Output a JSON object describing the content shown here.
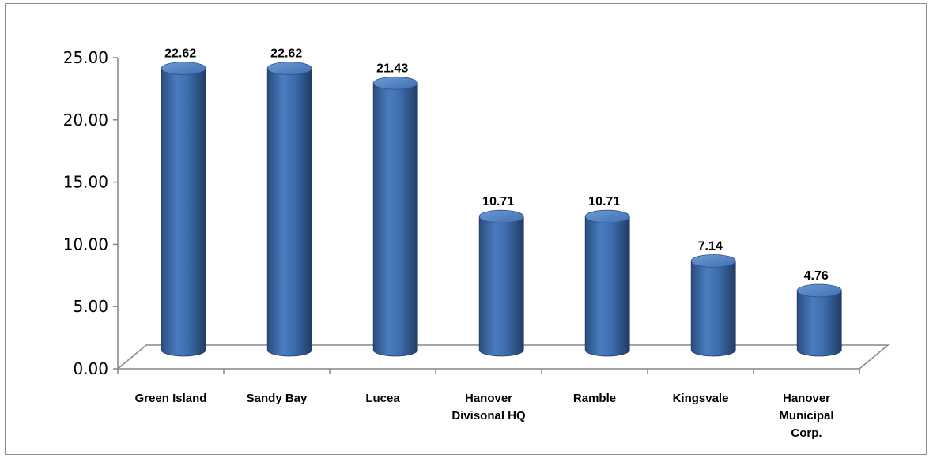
{
  "chart_data": {
    "type": "bar",
    "style": "3d-cylinder",
    "title": "",
    "xlabel": "",
    "ylabel": "",
    "categories": [
      "Green Island",
      "Sandy Bay",
      "Lucea",
      "Hanover Divisonal HQ",
      "Ramble",
      "Kingsvale",
      "Hanover Municipal Corp."
    ],
    "category_lines": [
      [
        "Green Island"
      ],
      [
        "Sandy Bay"
      ],
      [
        "Lucea"
      ],
      [
        "Hanover",
        "Divisonal HQ"
      ],
      [
        "Ramble"
      ],
      [
        "Kingsvale"
      ],
      [
        "Hanover",
        "Municipal",
        "Corp."
      ]
    ],
    "values": [
      22.62,
      22.62,
      21.43,
      10.71,
      10.71,
      7.14,
      4.76
    ],
    "value_labels": [
      "22.62",
      "22.62",
      "21.43",
      "10.71",
      "10.71",
      "7.14",
      "4.76"
    ],
    "ylim": [
      0,
      25
    ],
    "yticks": [
      0,
      5,
      10,
      15,
      20,
      25
    ],
    "ytick_labels": [
      "0.00",
      "5.00",
      "10.00",
      "15.00",
      "20.00",
      "25.00"
    ],
    "grid": false,
    "legend": "none",
    "bar_color": "#4F81BD"
  }
}
